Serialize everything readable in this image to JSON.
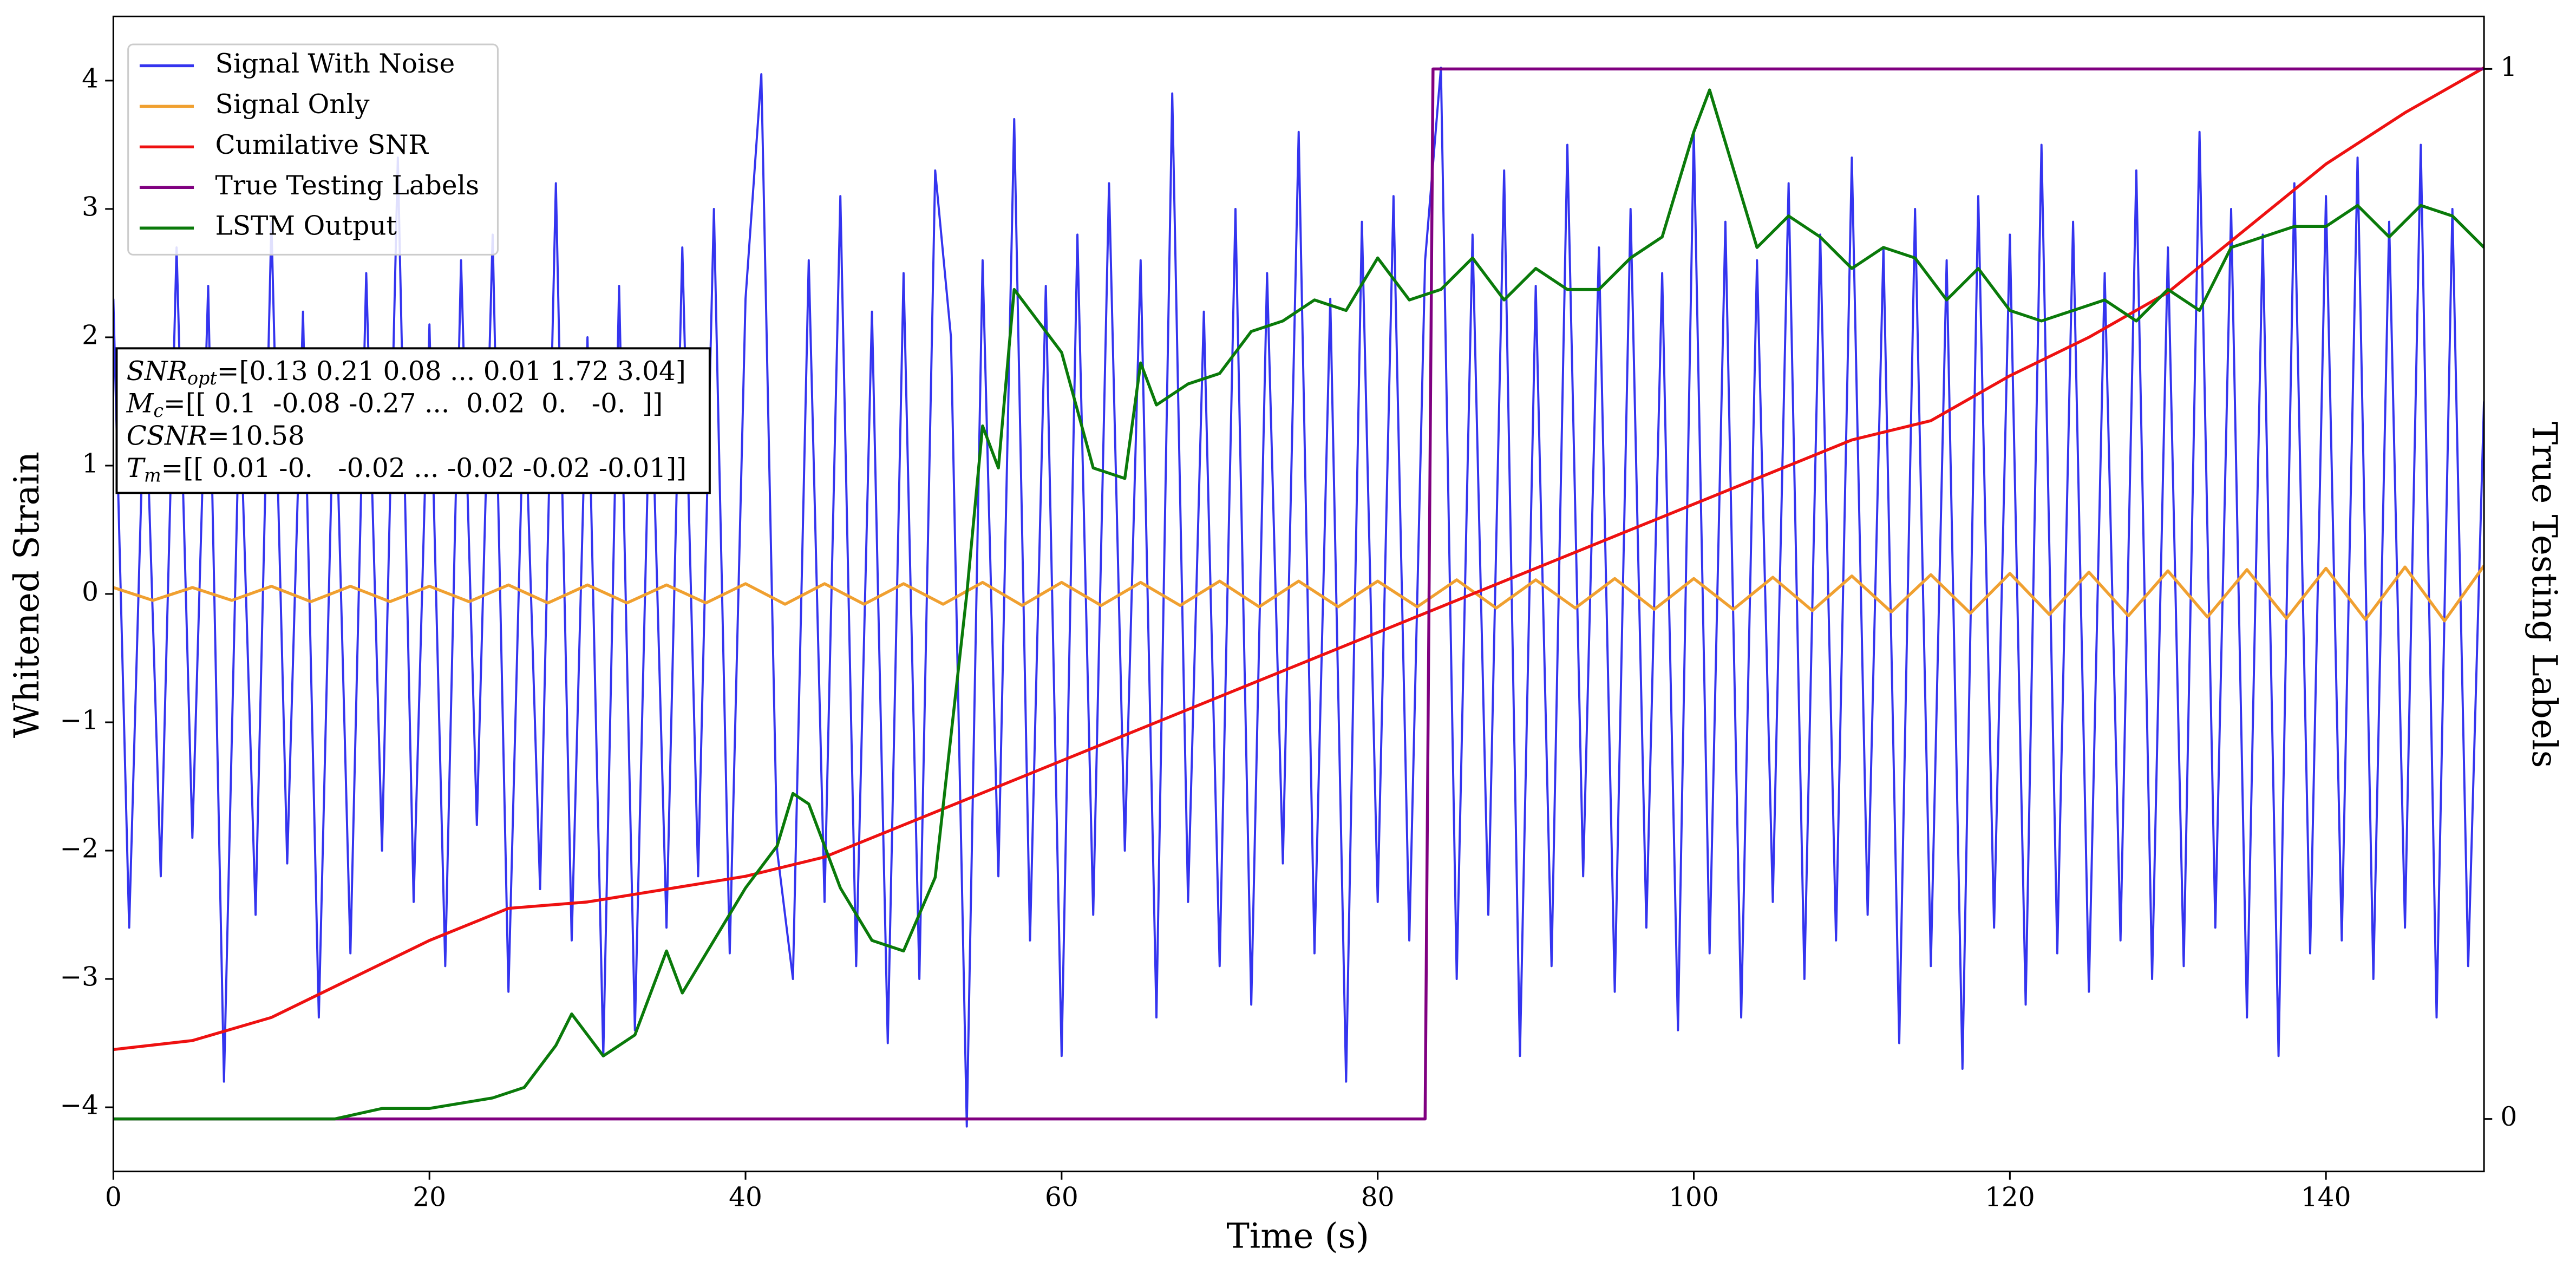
{
  "chart_data": {
    "type": "line",
    "xlabel": "Time (s)",
    "ylabel": "Whitened Strain",
    "y2label": "True Testing Labels",
    "xlim": [
      0,
      150
    ],
    "xticks": [
      0,
      20,
      40,
      60,
      80,
      100,
      120,
      140
    ],
    "ylim": [
      -4.5,
      4.5
    ],
    "yticks": [
      {
        "value": -4,
        "label": "−4"
      },
      {
        "value": -3,
        "label": "−3"
      },
      {
        "value": -2,
        "label": "−2"
      },
      {
        "value": -1,
        "label": "−1"
      },
      0,
      1,
      2,
      3,
      4
    ],
    "y2lim": [
      -0.05,
      1.05
    ],
    "y2ticks": [
      0,
      1
    ],
    "legend": "upper left",
    "series": [
      {
        "name": "Signal With Noise",
        "color": "#3434ef",
        "x": [
          0,
          1,
          2,
          3,
          4,
          5,
          6,
          7,
          8,
          9,
          10,
          11,
          12,
          13,
          14,
          15,
          16,
          17,
          18,
          19,
          20,
          21,
          22,
          23,
          24,
          25,
          26,
          27,
          28,
          29,
          30,
          31,
          32,
          33,
          34,
          35,
          36,
          37,
          38,
          39,
          40,
          41,
          42,
          43,
          44,
          45,
          46,
          47,
          48,
          49,
          50,
          51,
          52,
          53,
          54,
          55,
          56,
          57,
          58,
          59,
          60,
          61,
          62,
          63,
          64,
          65,
          66,
          67,
          68,
          69,
          70,
          71,
          72,
          73,
          74,
          75,
          76,
          77,
          78,
          79,
          80,
          81,
          82,
          83,
          84,
          85,
          86,
          87,
          88,
          89,
          90,
          91,
          92,
          93,
          94,
          95,
          96,
          97,
          98,
          99,
          100,
          101,
          102,
          103,
          104,
          105,
          106,
          107,
          108,
          109,
          110,
          111,
          112,
          113,
          114,
          115,
          116,
          117,
          118,
          119,
          120,
          121,
          122,
          123,
          124,
          125,
          126,
          127,
          128,
          129,
          130,
          131,
          132,
          133,
          134,
          135,
          136,
          137,
          138,
          139,
          140,
          141,
          142,
          143,
          144,
          145,
          146,
          147,
          148,
          149,
          150
        ],
        "values": [
          2.3,
          -2.6,
          1.8,
          -2.2,
          2.7,
          -1.9,
          2.4,
          -3.8,
          1.6,
          -2.5,
          2.9,
          -2.1,
          2.2,
          -3.3,
          1.9,
          -2.8,
          2.5,
          -2.0,
          3.4,
          -2.4,
          2.1,
          -2.9,
          2.6,
          -1.8,
          2.8,
          -3.1,
          1.7,
          -2.3,
          3.2,
          -2.7,
          2.0,
          -3.6,
          2.4,
          -3.4,
          1.9,
          -2.6,
          2.7,
          -2.2,
          3.0,
          -2.8,
          2.3,
          4.05,
          -2.0,
          -3.0,
          2.6,
          -2.4,
          3.1,
          -2.9,
          2.2,
          -3.5,
          2.5,
          -3.0,
          3.3,
          2.0,
          -4.15,
          2.6,
          -2.2,
          3.7,
          -2.7,
          2.4,
          -3.6,
          2.8,
          -2.5,
          3.2,
          -2.0,
          2.6,
          -3.3,
          3.9,
          -2.4,
          2.2,
          -2.9,
          3.0,
          -3.2,
          2.5,
          -2.1,
          3.6,
          -2.8,
          2.3,
          -3.8,
          2.9,
          -2.4,
          3.1,
          -2.7,
          2.6,
          4.1,
          -3.0,
          2.8,
          -2.5,
          3.3,
          -3.6,
          2.4,
          -2.9,
          3.5,
          -2.2,
          2.7,
          -3.1,
          3.0,
          -2.6,
          2.5,
          -3.4,
          3.6,
          -2.8,
          2.9,
          -3.3,
          2.6,
          -2.4,
          3.2,
          -3.0,
          2.8,
          -2.7,
          3.4,
          -2.5,
          2.7,
          -3.5,
          3.0,
          -2.9,
          2.6,
          -3.7,
          3.1,
          -2.6,
          2.8,
          -3.2,
          3.5,
          -2.8,
          2.9,
          -3.1,
          2.5,
          -2.7,
          3.3,
          -3.0,
          2.7,
          -2.9,
          3.6,
          -2.6,
          3.0,
          -3.3,
          2.8,
          -3.6,
          3.2,
          -2.8,
          3.1,
          -2.7,
          3.4,
          -3.0,
          2.9,
          -2.6,
          3.5,
          -3.3,
          3.0,
          -2.9,
          1.5
        ]
      },
      {
        "name": "Signal Only",
        "color": "#f0a030",
        "x": [
          0,
          2.5,
          5,
          7.5,
          10,
          12.5,
          15,
          17.5,
          20,
          22.5,
          25,
          27.5,
          30,
          32.5,
          35,
          37.5,
          40,
          42.5,
          45,
          47.5,
          50,
          52.5,
          55,
          57.5,
          60,
          62.5,
          65,
          67.5,
          70,
          72.5,
          75,
          77.5,
          80,
          82.5,
          85,
          87.5,
          90,
          92.5,
          95,
          97.5,
          100,
          102.5,
          105,
          107.5,
          110,
          112.5,
          115,
          117.5,
          120,
          122.5,
          125,
          127.5,
          130,
          132.5,
          135,
          137.5,
          140,
          142.5,
          145,
          147.5,
          150
        ],
        "values": [
          0.05,
          -0.05,
          0.05,
          -0.05,
          0.06,
          -0.06,
          0.06,
          -0.06,
          0.06,
          -0.06,
          0.07,
          -0.07,
          0.07,
          -0.07,
          0.07,
          -0.07,
          0.08,
          -0.08,
          0.08,
          -0.08,
          0.08,
          -0.08,
          0.09,
          -0.09,
          0.09,
          -0.09,
          0.09,
          -0.09,
          0.1,
          -0.1,
          0.1,
          -0.1,
          0.1,
          -0.1,
          0.11,
          -0.11,
          0.11,
          -0.11,
          0.12,
          -0.12,
          0.12,
          -0.12,
          0.13,
          -0.13,
          0.14,
          -0.14,
          0.15,
          -0.15,
          0.16,
          -0.16,
          0.17,
          -0.17,
          0.18,
          -0.18,
          0.19,
          -0.19,
          0.2,
          -0.2,
          0.21,
          -0.21,
          0.22
        ]
      },
      {
        "name": "Cumilative SNR",
        "color": "#ee1111",
        "x": [
          0,
          5,
          10,
          15,
          20,
          25,
          30,
          35,
          40,
          45,
          50,
          55,
          60,
          65,
          70,
          75,
          80,
          85,
          90,
          95,
          100,
          105,
          110,
          115,
          120,
          125,
          130,
          135,
          140,
          145,
          150
        ],
        "values": [
          -3.55,
          -3.48,
          -3.3,
          -3.0,
          -2.7,
          -2.45,
          -2.4,
          -2.3,
          -2.2,
          -2.05,
          -1.8,
          -1.55,
          -1.3,
          -1.05,
          -0.8,
          -0.55,
          -0.3,
          -0.05,
          0.2,
          0.45,
          0.7,
          0.95,
          1.2,
          1.35,
          1.7,
          2.0,
          2.35,
          2.85,
          3.35,
          3.75,
          4.1
        ]
      },
      {
        "name": "True Testing Labels",
        "color": "#800080",
        "axis": "y2",
        "x": [
          0,
          83,
          83.5,
          150
        ],
        "values": [
          0,
          0,
          1,
          1
        ]
      },
      {
        "name": "LSTM Output",
        "color": "#0a7a0a",
        "axis": "y2",
        "x": [
          0,
          14,
          17,
          20,
          24,
          26,
          28,
          29,
          31,
          33,
          35,
          36,
          38,
          40,
          42,
          43,
          44,
          46,
          48,
          50,
          52,
          54,
          55,
          56,
          57,
          58,
          60,
          62,
          64,
          65,
          66,
          68,
          70,
          72,
          74,
          76,
          78,
          80,
          82,
          84,
          86,
          88,
          90,
          92,
          94,
          96,
          98,
          100,
          101,
          102,
          104,
          106,
          108,
          110,
          112,
          114,
          116,
          118,
          120,
          122,
          124,
          126,
          128,
          130,
          132,
          134,
          136,
          138,
          140,
          142,
          144,
          146,
          148,
          150
        ],
        "values": [
          0,
          0,
          0.01,
          0.01,
          0.02,
          0.03,
          0.07,
          0.1,
          0.06,
          0.08,
          0.16,
          0.12,
          0.17,
          0.22,
          0.26,
          0.31,
          0.3,
          0.22,
          0.17,
          0.16,
          0.23,
          0.5,
          0.66,
          0.62,
          0.79,
          0.77,
          0.73,
          0.62,
          0.61,
          0.72,
          0.68,
          0.7,
          0.71,
          0.75,
          0.76,
          0.78,
          0.77,
          0.82,
          0.78,
          0.79,
          0.82,
          0.78,
          0.81,
          0.79,
          0.79,
          0.82,
          0.84,
          0.94,
          0.98,
          0.93,
          0.83,
          0.86,
          0.84,
          0.81,
          0.83,
          0.82,
          0.78,
          0.81,
          0.77,
          0.76,
          0.77,
          0.78,
          0.76,
          0.79,
          0.77,
          0.83,
          0.84,
          0.85,
          0.85,
          0.87,
          0.84,
          0.87,
          0.86,
          0.83
        ]
      }
    ],
    "annotations": [
      {
        "symbol": "SNR",
        "subscript": "opt",
        "text": "=[0.13 0.21 0.08 ... 0.01 1.72 3.04]"
      },
      {
        "symbol": "M",
        "subscript": "c",
        "text": "=[[ 0.1  -0.08 -0.27 ...  0.02  0.   -0.  ]]"
      },
      {
        "symbol": "CSNR",
        "text": "=10.58"
      },
      {
        "symbol": "T",
        "subscript": "m",
        "text": "=[[ 0.01 -0.   -0.02 ... -0.02 -0.02 -0.01]]"
      }
    ]
  }
}
